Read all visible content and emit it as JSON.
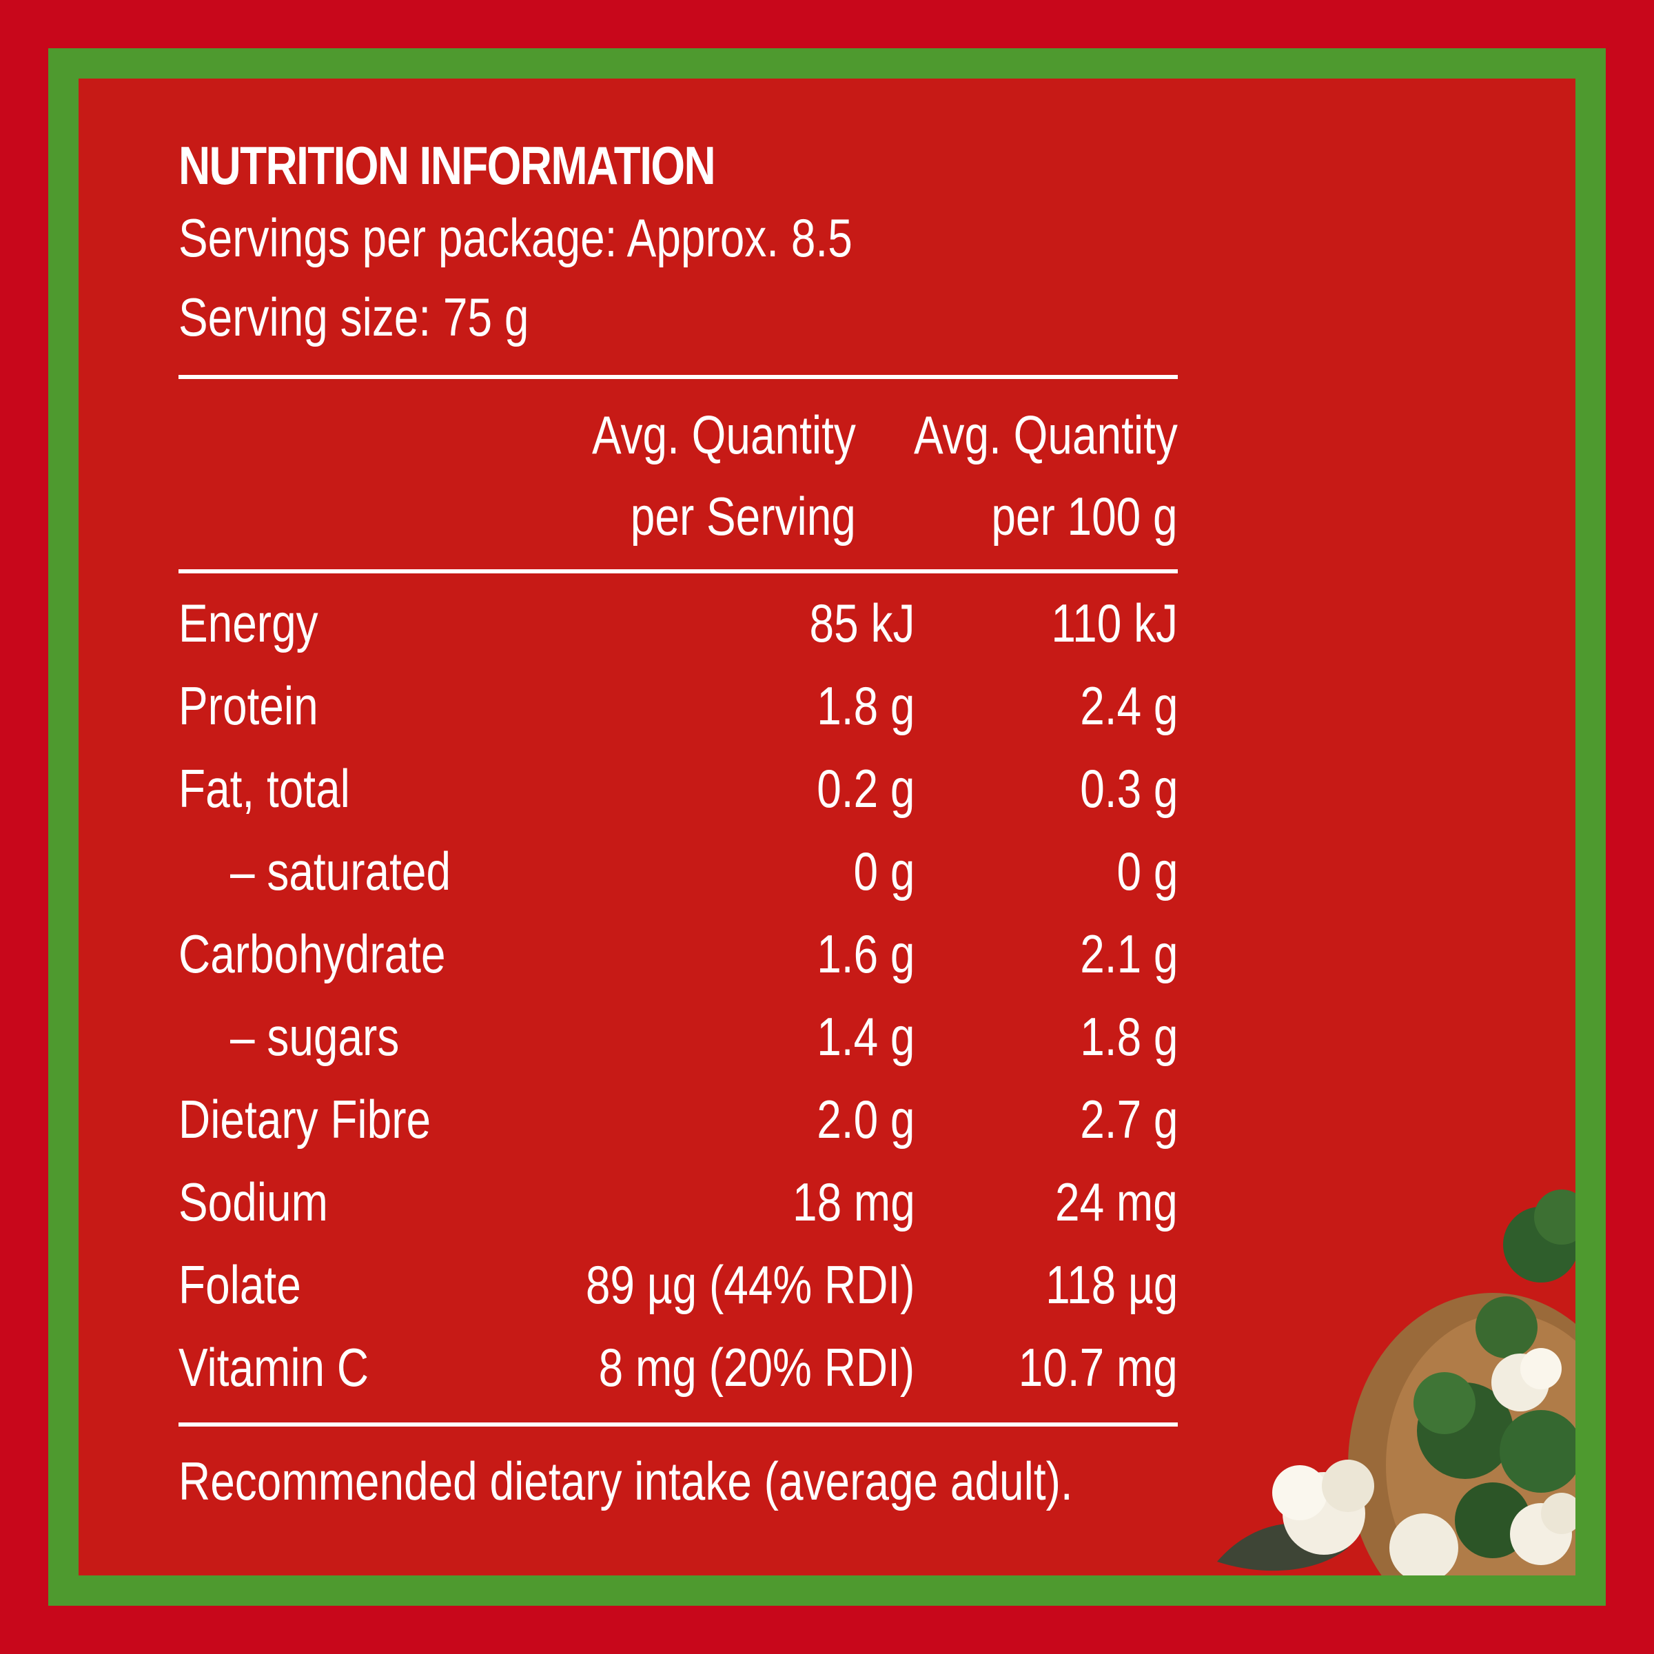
{
  "panel": {
    "title": "NUTRITION INFORMATION",
    "servings_per_package": "Servings per package: Approx. 8.5",
    "serving_size": "Serving size: 75 g"
  },
  "columns": {
    "per_serving_line1": "Avg. Quantity",
    "per_serving_line2": "per Serving",
    "per_100g_line1": "Avg. Quantity",
    "per_100g_line2": "per 100 g"
  },
  "rows": [
    {
      "name": "Energy",
      "per_serving": "85 kJ",
      "per_100g": "110 kJ"
    },
    {
      "name": "Protein",
      "per_serving": "1.8 g",
      "per_100g": "2.4 g"
    },
    {
      "name": "Fat, total",
      "per_serving": "0.2 g",
      "per_100g": "0.3 g"
    },
    {
      "name": "– saturated",
      "per_serving": "0 g",
      "per_100g": "0 g"
    },
    {
      "name": "Carbohydrate",
      "per_serving": "1.6 g",
      "per_100g": "2.1 g"
    },
    {
      "name": "– sugars",
      "per_serving": "1.4 g",
      "per_100g": "1.8 g"
    },
    {
      "name": "Dietary Fibre",
      "per_serving": "2.0 g",
      "per_100g": "2.7 g"
    },
    {
      "name": "Sodium",
      "per_serving": "18 mg",
      "per_100g": "24 mg"
    },
    {
      "name": "Folate",
      "per_serving": "89 µg (44% RDI)",
      "per_100g": "118 µg"
    },
    {
      "name": "Vitamin C",
      "per_serving": "8 mg (20% RDI)",
      "per_100g": "10.7 mg"
    }
  ],
  "footer": "Recommended dietary intake (average adult).",
  "colors": {
    "outer_red": "#c8071b",
    "frame_green": "#4e9a2f",
    "panel_red": "#c71a16",
    "text": "#ffffff"
  }
}
